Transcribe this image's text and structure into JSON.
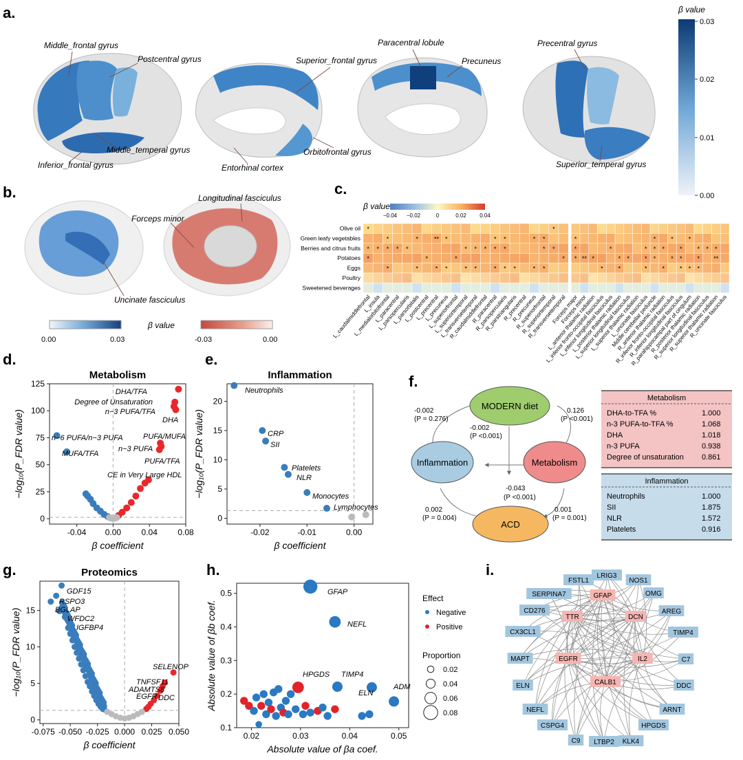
{
  "panels": {
    "a": {
      "label": "a.",
      "legend_title": "β value",
      "legend_ticks": [
        "0.03",
        "0.02",
        "0.01",
        "0.00"
      ],
      "regions": [
        "Middle_frontal gyrus",
        "Postcentral gyrus",
        "Middle_temperal gyrus",
        "Inferior_frontal gyrus",
        "Superior_frontal gyrus",
        "Paracentral lobule",
        "Precuneus",
        "Orbitofrontal gyrus",
        "Entorhinal cortex",
        "Precentral gyrus",
        "Superior_temperal gyrus"
      ]
    },
    "b": {
      "label": "b.",
      "tracts": [
        "Longitudinal fasciculus",
        "Forceps minor",
        "Uncinate fasciculus"
      ],
      "legend_title": "β value",
      "blue_ticks": [
        "0.00",
        "0.03"
      ],
      "red_ticks": [
        "-0.03",
        "0.00"
      ]
    },
    "c": {
      "label": "c.",
      "legend_title": "β value",
      "legend_ticks": [
        "−0.04",
        "−0.02",
        "0",
        "0.02",
        "0.04"
      ],
      "rows": [
        "Olive oil",
        "Green leafy vegetables",
        "Berries and citrus fruits",
        "Potatoes",
        "Eggs",
        "Poultry",
        "Sweetened beverages"
      ],
      "cols_left": [
        "L_caudalmiddlefrontal",
        "L_insula",
        "L_medialorbitofrontal",
        "L_paracentral",
        "L_parsopercularis",
        "L_parsorbitalis",
        "L_postcentral",
        "L_precentral",
        "L_precuneus",
        "L_superiorfrontal",
        "L_superiortemporal",
        "L_transversetemporal",
        "R_caudalmiddlefrontal",
        "R_paracentral",
        "R_parsopercularis",
        "R_parstriangularis",
        "R_precentral",
        "R_precuneus",
        "R_superiorfrontal",
        "R_superiortemporal",
        "R_transversetemporal"
      ],
      "cols_right": [
        "Forceps major",
        "Forceps minor",
        "L_anterior thalamic radiation",
        "L_inferior fronto-occipital fasciculus",
        "L_inferior longitudinal fasciculus",
        "L_posterior thalamic radiation",
        "L_superior longitudinal fasciculus",
        "L_superior thalamic radiation",
        "L_uncinate fasciculus",
        "Middle cerebellar peduncle",
        "R_anterior thalamic radiation",
        "R_inferior fronto-occipital fasciculus",
        "R_inferior longitudinal fasciculus",
        "R_parahippocampal part of cingulum",
        "R_posterior thalamic radiation",
        "R_superior longitudinal fasciculus",
        "R_superior thalamic radiation",
        "R_uncinate fasciculus"
      ],
      "stars_left": [
        "*..................*.",
        "..*..*.**....**..**..",
        "*****.....*****...**.",
        "*.....*..*..........*",
        "..*..*.**.**.***.**..",
        ".....................",
        "....................."
      ],
      "stars_right": [
        "..................",
        "*........*.*.*....",
        "*...*...***.*.***.",
        "***..**.**.**.*.*.",
        "...*.*..*.*.***...",
        "..................",
        ".................."
      ],
      "star_glyph": "*",
      "double_star_glyph": "**"
    },
    "d": {
      "label": "d.",
      "title": "Metabolism",
      "xlabel": "β coefficient",
      "ylabel": "−log₁₀(P_FDR value)",
      "xticks": [
        "-0.04",
        "0.00",
        "0.04",
        "0.08"
      ],
      "yticks": [
        "0",
        "25",
        "50",
        "75",
        "100",
        "125"
      ],
      "labels": [
        "DHA/TFA",
        "Degree of Unsaturation",
        "n−3 PUFA/TFA",
        "DHA",
        "n−6 PUFA/n−3 PUFA",
        "PUFA/MUFA",
        "n−3 PUFA",
        "MUFA/TFA",
        "PUFA/TFA",
        "CE in Very Large HDL"
      ]
    },
    "e": {
      "label": "e.",
      "title": "Inflammation",
      "xlabel": "β coefficient",
      "ylabel": "−log₁₀(P_FDR value)",
      "xticks": [
        "-0.02",
        "-0.01",
        "0.00"
      ],
      "yticks": [
        "0",
        "5",
        "10",
        "15",
        "20"
      ],
      "labels": [
        "Neutrophils",
        "CRP",
        "SII",
        "Platelets",
        "NLR",
        "Monocytes",
        "Lymphocytes"
      ]
    },
    "f": {
      "label": "f.",
      "nodes": {
        "diet": "MODERN diet",
        "inflam": "Inflammation",
        "metab": "Metabolism",
        "acd": "ACD"
      },
      "paths": {
        "diet_inflam": "-0.002",
        "diet_inflam_p": "(P = 0.276)",
        "diet_metab": "0.126",
        "diet_metab_p": "(P <0.001)",
        "diet_acd": "-0.002",
        "diet_acd_p": "(P <0.001)",
        "metab_acd_mid": "-0.043",
        "metab_acd_mid_p": "(P <0.001)",
        "inflam_acd": "0.002",
        "inflam_acd_p": "(P = 0.004)",
        "metab_acd": "0.001",
        "metab_acd_p": "(P = 0.001)"
      },
      "metab_table": {
        "title": "Metabolism",
        "rows": [
          {
            "name": "DHA-to-TFA %",
            "value": "1.000"
          },
          {
            "name": "n-3 PUFA-to-TFA %",
            "value": "1.068"
          },
          {
            "name": "DHA",
            "value": "1.018"
          },
          {
            "name": "n-3 PUFA",
            "value": "0.938"
          },
          {
            "name": "Degree of unsaturation",
            "value": "0.861"
          }
        ]
      },
      "inflam_table": {
        "title": "Inflammation",
        "rows": [
          {
            "name": "Neutrophils",
            "value": "1.000"
          },
          {
            "name": "SII",
            "value": "1.875"
          },
          {
            "name": "NLR",
            "value": "1.572"
          },
          {
            "name": "Platelets",
            "value": "0.916"
          }
        ]
      },
      "colors": {
        "diet": "#9fcd6e",
        "inflam": "#a9cce3",
        "metab": "#ef8b8b",
        "acd": "#f5b860",
        "metab_table": "#f4c3c3",
        "inflam_table": "#c6dceb"
      }
    },
    "g": {
      "label": "g.",
      "title": "Proteomics",
      "xlabel": "β coefficient",
      "ylabel": "−log₁₀(P_FDR value)",
      "xticks": [
        "-0.075",
        "-0.050",
        "-0.025",
        "0.000",
        "0.025",
        "0.050"
      ],
      "yticks": [
        "0",
        "5",
        "10",
        "15"
      ],
      "labels": [
        "GDF15",
        "RSPO3",
        "BGLAP",
        "WFDC2",
        "IGFBP4",
        "SELENOP",
        "TNFSF11",
        "ADAMTS8",
        "EGFR",
        "DDC"
      ]
    },
    "h": {
      "label": "h.",
      "xlabel": "Absolute value of βa coef.",
      "ylabel": "Absolute value of βb coef.",
      "xticks": [
        "0.02",
        "0.03",
        "0.04",
        "0.05"
      ],
      "yticks": [
        "0.1",
        "0.2",
        "0.3",
        "0.4",
        "0.5"
      ],
      "labels": [
        "GFAP",
        "NEFL",
        "HPGDS",
        "TIMP4",
        "ELN",
        "ADM"
      ],
      "legend_effect": "Effect",
      "legend_negative": "Negative",
      "legend_positive": "Positive",
      "legend_proportion": "Proportion",
      "proportion_values": [
        "0.02",
        "0.04",
        "0.06",
        "0.08"
      ]
    },
    "i": {
      "label": "i.",
      "red_nodes": [
        "GFAP",
        "TTR",
        "DCN",
        "EGFR",
        "IL2",
        "CALB1"
      ],
      "blue_nodes": [
        "FSTL1",
        "LRIG3",
        "NOS1",
        "SERPINA7",
        "OMG",
        "CD276",
        "AREG",
        "CX3CL1",
        "TIMP4",
        "MAPT",
        "C7",
        "ELN",
        "DDC",
        "NEFL",
        "ARNT",
        "CSPG4",
        "HPGDS",
        "C9",
        "LTBP2",
        "KLK4"
      ]
    }
  },
  "chart_data": [
    {
      "type": "scatter",
      "title": "Metabolism",
      "xlabel": "β coefficient",
      "ylabel": "−log10(P_FDR value)",
      "xlim": [
        -0.07,
        0.08
      ],
      "ylim": [
        -5,
        125
      ],
      "series": [
        {
          "name": "Negative",
          "color": "#3a7dbc",
          "x": [
            -0.062,
            -0.051,
            -0.03,
            -0.028,
            -0.025,
            -0.022,
            -0.018,
            -0.014,
            -0.01,
            -0.006
          ],
          "y": [
            77,
            62,
            23,
            21,
            18,
            14,
            10,
            7,
            4,
            2
          ]
        },
        {
          "name": "Positive",
          "color": "#e8282b",
          "x": [
            0.072,
            0.068,
            0.067,
            0.069,
            0.052,
            0.053,
            0.051,
            0.039,
            0.035,
            0.03,
            0.025,
            0.02,
            0.015,
            0.01,
            0.006
          ],
          "y": [
            120,
            108,
            104,
            101,
            70,
            67,
            64,
            36,
            33,
            28,
            21,
            15,
            10,
            6,
            3
          ]
        },
        {
          "name": "NS",
          "color": "#bbbbbb",
          "x": [
            -0.004,
            -0.002,
            0.0,
            0.002,
            0.004
          ],
          "y": [
            1,
            0.5,
            0.3,
            0.5,
            1
          ]
        }
      ]
    },
    {
      "type": "scatter",
      "title": "Inflammation",
      "xlabel": "β coefficient",
      "ylabel": "−log10(P_FDR value)",
      "xlim": [
        -0.027,
        0.004
      ],
      "ylim": [
        -1,
        23
      ],
      "series": [
        {
          "name": "Negative",
          "color": "#3a7dbc",
          "x": [
            -0.0255,
            -0.0195,
            -0.0188,
            -0.0148,
            -0.014,
            -0.01,
            -0.0058
          ],
          "y": [
            22.7,
            15.0,
            13.2,
            8.7,
            7.5,
            4.4,
            1.7
          ]
        },
        {
          "name": "NS",
          "color": "#bbbbbb",
          "x": [
            -0.0005,
            0.0025
          ],
          "y": [
            0.2,
            0.6
          ]
        }
      ]
    },
    {
      "type": "scatter",
      "title": "Proteomics",
      "xlabel": "β coefficient",
      "ylabel": "−log10(P_FDR value)",
      "xlim": [
        -0.078,
        0.05
      ],
      "ylim": [
        -0.5,
        19
      ],
      "series": [
        {
          "name": "Negative",
          "color": "#3a7dbc",
          "x": [
            -0.058,
            -0.063,
            -0.068,
            -0.06,
            -0.055,
            -0.052,
            -0.05,
            -0.048,
            -0.046,
            -0.044,
            -0.042,
            -0.04,
            -0.038,
            -0.036,
            -0.034,
            -0.032,
            -0.03,
            -0.028,
            -0.026,
            -0.024,
            -0.022,
            -0.02
          ],
          "y": [
            18.4,
            17.0,
            16.2,
            14.9,
            14.1,
            12.6,
            11.8,
            10.9,
            10.0,
            9.2,
            8.4,
            7.6,
            6.8,
            6.0,
            5.2,
            4.6,
            3.9,
            3.3,
            2.7,
            2.2,
            1.8,
            1.5
          ]
        },
        {
          "name": "Positive",
          "color": "#e8282b",
          "x": [
            0.045,
            0.037,
            0.035,
            0.033,
            0.03,
            0.027,
            0.024,
            0.022,
            0.02
          ],
          "y": [
            6.5,
            5.1,
            4.6,
            4.0,
            3.3,
            2.7,
            2.2,
            1.8,
            1.5
          ]
        },
        {
          "name": "NS",
          "color": "#bbbbbb",
          "x": [
            -0.016,
            -0.012,
            -0.008,
            -0.004,
            0.0,
            0.004,
            0.008,
            0.012,
            0.016
          ],
          "y": [
            1.1,
            0.8,
            0.5,
            0.3,
            0.2,
            0.3,
            0.5,
            0.8,
            1.1
          ]
        }
      ]
    },
    {
      "type": "scatter",
      "title": "",
      "xlabel": "Absolute value of βa coef.",
      "ylabel": "Absolute value of βb coef.",
      "xlim": [
        0.017,
        0.052
      ],
      "ylim": [
        0.1,
        0.53
      ],
      "points": [
        {
          "x": 0.032,
          "y": 0.52,
          "effect": "Negative",
          "size": 0.08,
          "label": "GFAP"
        },
        {
          "x": 0.037,
          "y": 0.415,
          "effect": "Negative",
          "size": 0.06,
          "label": "NEFL"
        },
        {
          "x": 0.0295,
          "y": 0.22,
          "effect": "Positive",
          "size": 0.06,
          "label": "HPGDS"
        },
        {
          "x": 0.0375,
          "y": 0.222,
          "effect": "Negative",
          "size": 0.05,
          "label": "TIMP4"
        },
        {
          "x": 0.0445,
          "y": 0.22,
          "effect": "Negative",
          "size": 0.05,
          "label": "ELN"
        },
        {
          "x": 0.049,
          "y": 0.178,
          "effect": "Negative",
          "size": 0.05,
          "label": "ADM"
        },
        {
          "x": 0.0185,
          "y": 0.18,
          "effect": "Positive",
          "size": 0.03
        },
        {
          "x": 0.0195,
          "y": 0.165,
          "effect": "Positive",
          "size": 0.03
        },
        {
          "x": 0.0205,
          "y": 0.15,
          "effect": "Negative",
          "size": 0.03
        },
        {
          "x": 0.021,
          "y": 0.19,
          "effect": "Negative",
          "size": 0.03
        },
        {
          "x": 0.0215,
          "y": 0.11,
          "effect": "Negative",
          "size": 0.02
        },
        {
          "x": 0.022,
          "y": 0.165,
          "effect": "Positive",
          "size": 0.03
        },
        {
          "x": 0.0225,
          "y": 0.2,
          "effect": "Negative",
          "size": 0.03
        },
        {
          "x": 0.023,
          "y": 0.14,
          "effect": "Negative",
          "size": 0.03
        },
        {
          "x": 0.0235,
          "y": 0.175,
          "effect": "Negative",
          "size": 0.03
        },
        {
          "x": 0.024,
          "y": 0.155,
          "effect": "Positive",
          "size": 0.03
        },
        {
          "x": 0.0245,
          "y": 0.205,
          "effect": "Negative",
          "size": 0.03
        },
        {
          "x": 0.025,
          "y": 0.135,
          "effect": "Negative",
          "size": 0.03
        },
        {
          "x": 0.0255,
          "y": 0.215,
          "effect": "Negative",
          "size": 0.03
        },
        {
          "x": 0.026,
          "y": 0.16,
          "effect": "Negative",
          "size": 0.03
        },
        {
          "x": 0.0265,
          "y": 0.145,
          "effect": "Positive",
          "size": 0.03
        },
        {
          "x": 0.027,
          "y": 0.18,
          "effect": "Negative",
          "size": 0.03
        },
        {
          "x": 0.0275,
          "y": 0.14,
          "effect": "Negative",
          "size": 0.03
        },
        {
          "x": 0.028,
          "y": 0.2,
          "effect": "Negative",
          "size": 0.03
        },
        {
          "x": 0.029,
          "y": 0.155,
          "effect": "Negative",
          "size": 0.03
        },
        {
          "x": 0.0305,
          "y": 0.14,
          "effect": "Negative",
          "size": 0.03
        },
        {
          "x": 0.031,
          "y": 0.165,
          "effect": "Positive",
          "size": 0.03
        },
        {
          "x": 0.032,
          "y": 0.145,
          "effect": "Negative",
          "size": 0.03
        },
        {
          "x": 0.0335,
          "y": 0.15,
          "effect": "Positive",
          "size": 0.03
        },
        {
          "x": 0.0345,
          "y": 0.16,
          "effect": "Negative",
          "size": 0.03
        },
        {
          "x": 0.0355,
          "y": 0.135,
          "effect": "Negative",
          "size": 0.03
        },
        {
          "x": 0.037,
          "y": 0.155,
          "effect": "Positive",
          "size": 0.03
        },
        {
          "x": 0.0425,
          "y": 0.135,
          "effect": "Negative",
          "size": 0.03
        },
        {
          "x": 0.044,
          "y": 0.14,
          "effect": "Negative",
          "size": 0.03
        }
      ]
    }
  ]
}
